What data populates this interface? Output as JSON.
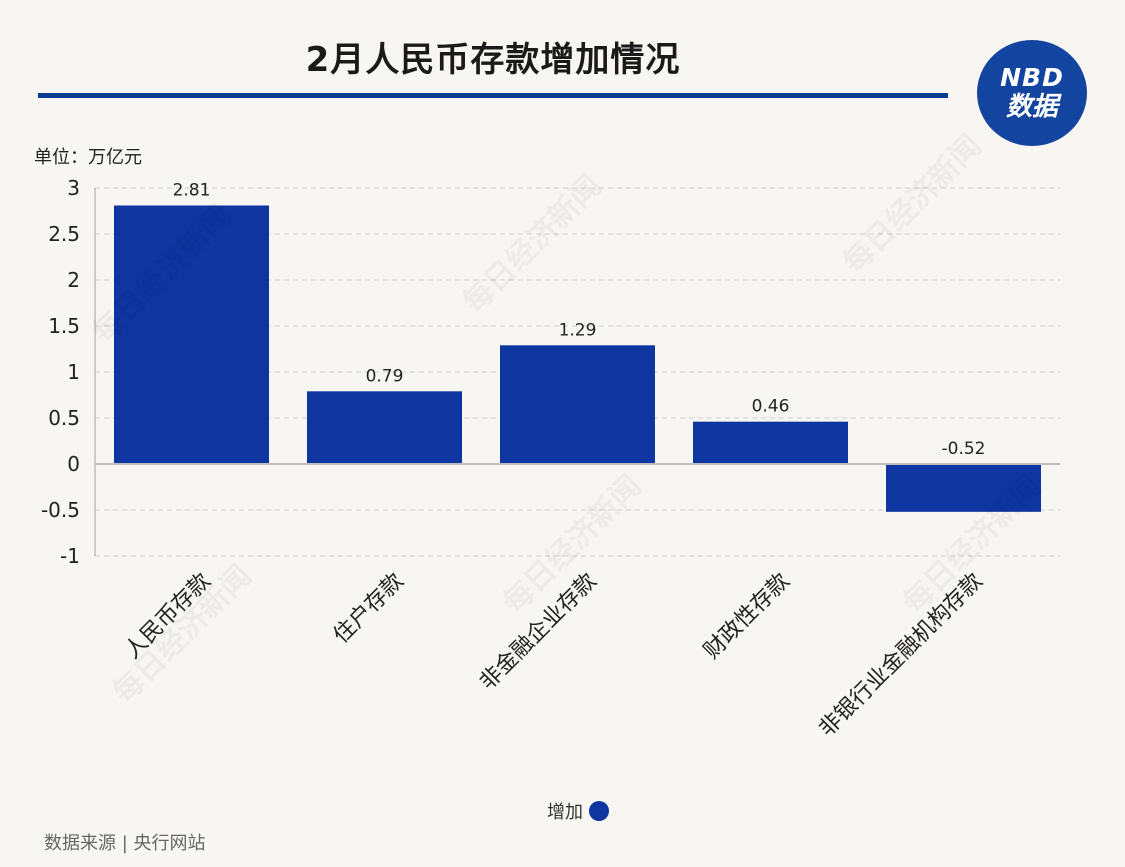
{
  "title": "2月人民币存款增加情况",
  "logo": {
    "line1": "NBD",
    "line2": "数据",
    "color": "#1345a0"
  },
  "unit_label": "单位：万亿元",
  "source": "数据来源 | 央行网站",
  "watermark": "每日经济新闻",
  "chart_data": {
    "type": "bar",
    "categories": [
      "人民币存款",
      "住户存款",
      "非金融企业存款",
      "财政性存款",
      "非银行业金融机构存款"
    ],
    "series": [
      {
        "name": "增加",
        "values": [
          2.81,
          0.79,
          1.29,
          0.46,
          -0.52
        ],
        "color": "#0e35a0"
      }
    ],
    "data_labels": [
      "2.81",
      "0.79",
      "1.29",
      "0.46",
      "-0.52"
    ],
    "ylim": [
      -1,
      3
    ],
    "yticks": [
      -1,
      -0.5,
      0,
      0.5,
      1,
      1.5,
      2,
      2.5,
      3
    ],
    "ytick_labels": [
      "-1",
      "-0.5",
      "0",
      "0.5",
      "1",
      "1.5",
      "2",
      "2.5",
      "3"
    ],
    "grid": true,
    "legend_position": "bottom-center"
  }
}
